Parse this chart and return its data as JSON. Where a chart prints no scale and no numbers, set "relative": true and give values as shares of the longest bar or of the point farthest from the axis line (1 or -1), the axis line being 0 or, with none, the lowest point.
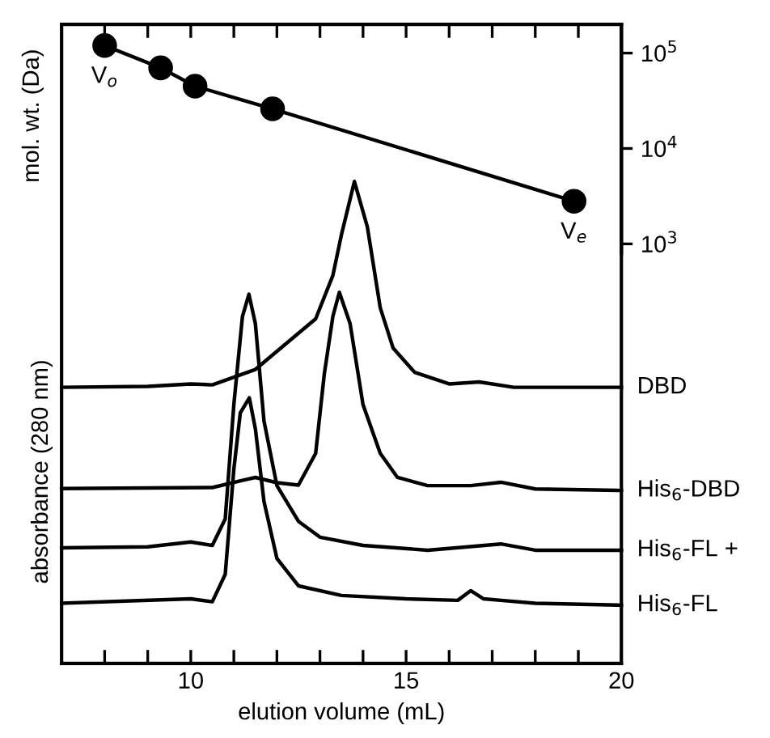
{
  "chart_data": [
    {
      "type": "line",
      "ylabel": "mol. wt. (Da)",
      "xlim": [
        7,
        20
      ],
      "ylim": [
        800,
        200000
      ],
      "log": "y",
      "tick_labels": "y",
      "yticks": [
        {
          "value": 1000,
          "label": "10$^{3}$"
        },
        {
          "value": 10000,
          "label": "10$^{4}$"
        },
        {
          "value": 100000,
          "label": "10$^{5}$"
        }
      ],
      "grid": false,
      "legend": false,
      "line_style": "solid",
      "marker": "circle",
      "series": [
        {
          "color": "#000000",
          "x": [
            8.0,
            9.3,
            10.1,
            11.9,
            18.9
          ],
          "values": [
            120000,
            70000,
            45000,
            26000,
            2800
          ]
        }
      ],
      "annotations": [
        {
          "text": "V$_{o}$",
          "x": 8.0,
          "y": 120000
        },
        {
          "text": "V$_{e}$",
          "x": 18.9,
          "y": 2800
        }
      ]
    },
    {
      "type": "line",
      "relative": true,
      "xlabel": "elution volume (mL)",
      "ylabel": "absorbance (280 nm)",
      "xlim": [
        7,
        20
      ],
      "xticks": [
        {
          "value": 8,
          "label": null
        },
        {
          "value": 9,
          "label": null
        },
        10,
        {
          "value": 11,
          "label": null
        },
        {
          "value": 12,
          "label": null
        },
        {
          "value": 13,
          "label": null
        },
        {
          "value": 14,
          "label": null
        },
        15,
        {
          "value": 16,
          "label": null
        },
        {
          "value": 17,
          "label": null
        },
        {
          "value": 18,
          "label": null
        },
        {
          "value": 19,
          "label": null
        },
        20
      ],
      "grid": false,
      "legend": false,
      "line_style": "solid",
      "marker": "none",
      "series": [
        {
          "name": "DBD",
          "color": "#000000",
          "x": [
            7,
            9,
            10,
            10.5,
            11.5,
            12.3,
            12.9,
            13.3,
            13.5,
            13.8,
            14.1,
            14.4,
            14.7,
            15.2,
            16,
            16.7,
            17.5,
            20
          ],
          "values": [
            0.573,
            0.575,
            0.58,
            0.578,
            0.61,
            0.67,
            0.715,
            0.805,
            0.89,
            1.0,
            0.906,
            0.738,
            0.654,
            0.604,
            0.58,
            0.584,
            0.573,
            0.573
          ]
        },
        {
          "name": "His$_{6}$-DBD",
          "color": "#000000",
          "x": [
            7,
            10.5,
            11.2,
            11.5,
            12,
            12.5,
            12.9,
            13.1,
            13.3,
            13.45,
            13.7,
            14.0,
            14.4,
            14.8,
            15.5,
            16.5,
            17.2,
            18,
            20
          ],
          "values": [
            0.363,
            0.365,
            0.38,
            0.386,
            0.375,
            0.37,
            0.436,
            0.6,
            0.72,
            0.77,
            0.705,
            0.537,
            0.436,
            0.386,
            0.369,
            0.369,
            0.376,
            0.362,
            0.359
          ]
        },
        {
          "name": "His$_{6}$-FL +",
          "color": "#000000",
          "x": [
            7,
            9,
            10,
            10.5,
            10.8,
            11.0,
            11.2,
            11.35,
            11.5,
            11.7,
            12,
            12.5,
            13,
            14,
            15.5,
            17.2,
            18,
            20
          ],
          "values": [
            0.24,
            0.242,
            0.252,
            0.245,
            0.3,
            0.537,
            0.72,
            0.766,
            0.705,
            0.503,
            0.369,
            0.295,
            0.262,
            0.245,
            0.235,
            0.248,
            0.235,
            0.235
          ]
        },
        {
          "name": "His$_{6}$-FL",
          "color": "#000000",
          "x": [
            7,
            10,
            10.5,
            10.8,
            11.0,
            11.15,
            11.36,
            11.5,
            11.7,
            12,
            12.5,
            13.5,
            15,
            16.2,
            16.5,
            16.8,
            17.2,
            18,
            20
          ],
          "values": [
            0.125,
            0.134,
            0.128,
            0.185,
            0.403,
            0.52,
            0.551,
            0.487,
            0.336,
            0.218,
            0.161,
            0.141,
            0.134,
            0.131,
            0.151,
            0.134,
            0.131,
            0.125,
            0.121
          ]
        }
      ]
    }
  ]
}
